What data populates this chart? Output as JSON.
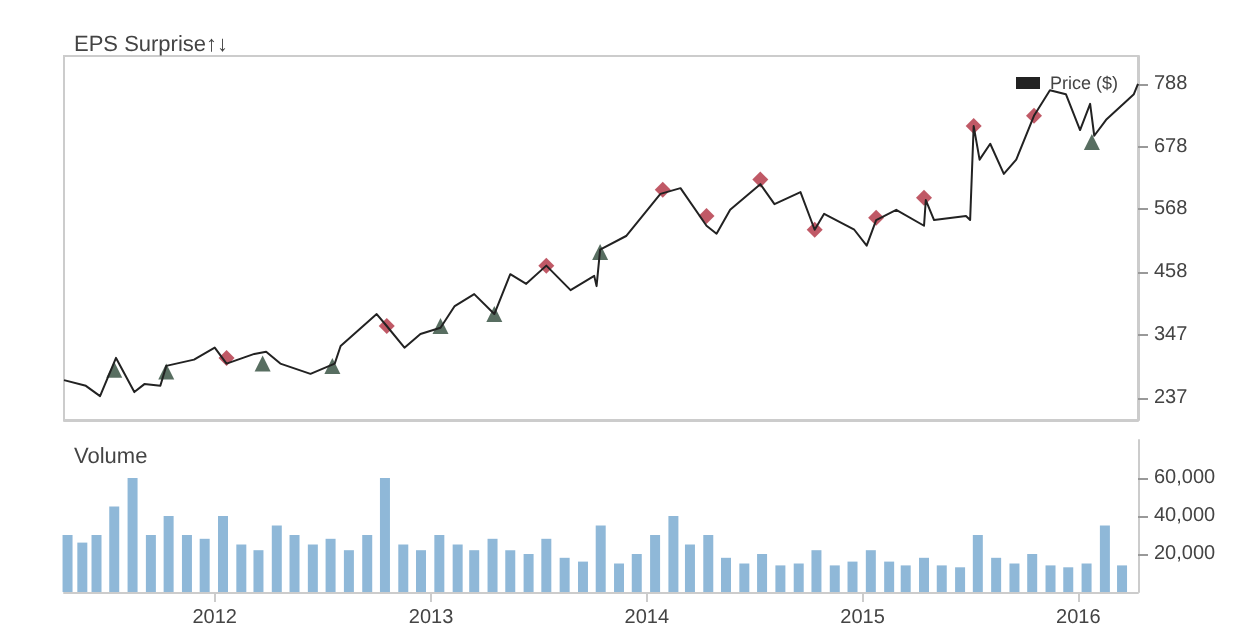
{
  "chart_data": [
    {
      "type": "line",
      "title": "EPS Surprise↑↓",
      "xlim": [
        "2011-04-21",
        "2016-04-11"
      ],
      "ylim": [
        198,
        837
      ],
      "yticks": [
        237,
        347,
        458,
        568,
        678,
        788
      ],
      "tick_labels": "y",
      "grid": false,
      "legend": "top right",
      "series": [
        {
          "name": "Price ($)",
          "color": "#222222",
          "marker": "none",
          "x": [
            "2011-04-21",
            "2011-05-28",
            "2011-06-21",
            "2011-07-18",
            "2011-08-18",
            "2011-09-04",
            "2011-10-01",
            "2011-10-11",
            "2011-11-27",
            "2012-01-01",
            "2012-01-21",
            "2012-03-08",
            "2012-03-28",
            "2012-04-21",
            "2012-06-11",
            "2012-07-22",
            "2012-08-01",
            "2012-10-01",
            "2012-10-18",
            "2012-11-17",
            "2012-12-14",
            "2013-01-17",
            "2013-02-10",
            "2013-03-15",
            "2013-04-18",
            "2013-05-15",
            "2013-06-11",
            "2013-07-15",
            "2013-08-25",
            "2013-10-04",
            "2013-10-08",
            "2013-10-14",
            "2013-11-27",
            "2014-01-24",
            "2014-02-27",
            "2014-04-12",
            "2014-04-29",
            "2014-05-22",
            "2014-07-12",
            "2014-08-05",
            "2014-09-18",
            "2014-10-12",
            "2014-10-28",
            "2014-12-18",
            "2015-01-08",
            "2015-01-24",
            "2015-02-27",
            "2015-04-15",
            "2015-04-18",
            "2015-05-02",
            "2015-06-25",
            "2015-07-02",
            "2015-07-08",
            "2015-07-18",
            "2015-08-05",
            "2015-08-28",
            "2015-09-18",
            "2015-10-18",
            "2015-11-14",
            "2015-12-11",
            "2016-01-04",
            "2016-01-21",
            "2016-01-28",
            "2016-02-17",
            "2016-04-04",
            "2016-04-11"
          ],
          "values": [
            268,
            258,
            240,
            307,
            247,
            261,
            258,
            293,
            304,
            325,
            297,
            314,
            318,
            297,
            279,
            297,
            328,
            384,
            363,
            325,
            349,
            360,
            398,
            419,
            384,
            454,
            437,
            469,
            426,
            451,
            433,
            497,
            521,
            595,
            605,
            539,
            525,
            567,
            612,
            577,
            598,
            532,
            560,
            532,
            504,
            549,
            567,
            539,
            584,
            549,
            556,
            549,
            714,
            655,
            683,
            630,
            655,
            732,
            777,
            770,
            707,
            753,
            697,
            725,
            770,
            788
          ]
        },
        {
          "type": "scatter",
          "color": "#2e4a3a",
          "marker": "triangle",
          "x": [
            "2011-07-15",
            "2011-10-11",
            "2012-03-22",
            "2012-07-18",
            "2013-01-17",
            "2013-04-18",
            "2013-10-14",
            "2016-01-24"
          ],
          "values": [
            286,
            283,
            297,
            293,
            363,
            384,
            493,
            686
          ]
        },
        {
          "type": "scatter",
          "color": "#b03040",
          "marker": "diamond",
          "x": [
            "2012-01-21",
            "2012-10-18",
            "2013-07-15",
            "2014-01-28",
            "2014-04-12",
            "2014-07-12",
            "2014-10-12",
            "2015-01-24",
            "2015-04-15",
            "2015-07-08",
            "2015-10-18"
          ],
          "values": [
            307,
            363,
            469,
            602,
            556,
            620,
            532,
            553,
            588,
            714,
            732
          ]
        }
      ]
    },
    {
      "type": "bar",
      "title": "Volume",
      "xlim": [
        "2011-04-21",
        "2016-04-11"
      ],
      "xticks": [
        "2012",
        "2013",
        "2014",
        "2015",
        "2016"
      ],
      "ylim": [
        0,
        80000
      ],
      "yticks": [
        {
          "value": 20000,
          "label": "20,000"
        },
        {
          "value": 40000,
          "label": "40,000"
        },
        {
          "value": 60000,
          "label": "60,000"
        }
      ],
      "grid": false,
      "legend": false,
      "series": [
        {
          "color": "#8fb8d8",
          "x": [
            "2011-04-27",
            "2011-05-22",
            "2011-06-15",
            "2011-07-15",
            "2011-08-15",
            "2011-09-15",
            "2011-10-15",
            "2011-11-15",
            "2011-12-15",
            "2012-01-15",
            "2012-02-15",
            "2012-03-15",
            "2012-04-15",
            "2012-05-15",
            "2012-06-15",
            "2012-07-15",
            "2012-08-15",
            "2012-09-15",
            "2012-10-15",
            "2012-11-15",
            "2012-12-15",
            "2013-01-15",
            "2013-02-15",
            "2013-03-15",
            "2013-04-15",
            "2013-05-15",
            "2013-06-15",
            "2013-07-15",
            "2013-08-15",
            "2013-09-15",
            "2013-10-15",
            "2013-11-15",
            "2013-12-15",
            "2014-01-15",
            "2014-02-15",
            "2014-03-15",
            "2014-04-15",
            "2014-05-15",
            "2014-06-15",
            "2014-07-15",
            "2014-08-15",
            "2014-09-15",
            "2014-10-15",
            "2014-11-15",
            "2014-12-15",
            "2015-01-15",
            "2015-02-15",
            "2015-03-15",
            "2015-04-15",
            "2015-05-15",
            "2015-06-15",
            "2015-07-15",
            "2015-08-15",
            "2015-09-15",
            "2015-10-15",
            "2015-11-15",
            "2015-12-15",
            "2016-01-15",
            "2016-02-15",
            "2016-03-15"
          ],
          "values": [
            30000,
            26000,
            30000,
            45000,
            60000,
            30000,
            40000,
            30000,
            28000,
            40000,
            25000,
            22000,
            35000,
            30000,
            25000,
            28000,
            22000,
            30000,
            60000,
            25000,
            22000,
            30000,
            25000,
            22000,
            28000,
            22000,
            20000,
            28000,
            18000,
            16000,
            35000,
            15000,
            20000,
            30000,
            40000,
            25000,
            30000,
            18000,
            15000,
            20000,
            14000,
            15000,
            22000,
            14000,
            16000,
            22000,
            16000,
            14000,
            18000,
            14000,
            13000,
            30000,
            18000,
            15000,
            20000,
            14000,
            13000,
            15000,
            35000,
            14000
          ]
        }
      ]
    }
  ]
}
